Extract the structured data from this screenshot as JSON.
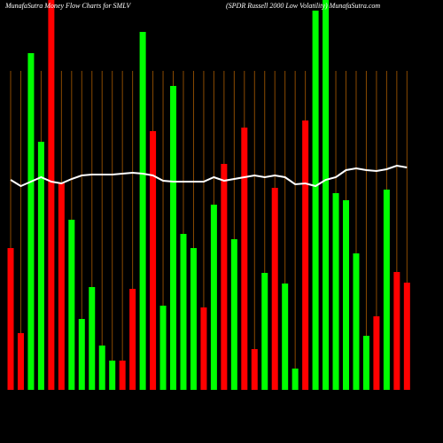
{
  "chart_data": {
    "type": "bar",
    "title": "MunafaSutra  Money Flow  Charts for SMLV",
    "subtitle": "(SPDR Russell 2000  Low  Volatility) MunafaSutra.com",
    "categories": [
      null,
      null,
      null,
      null,
      null,
      null,
      null,
      null,
      null,
      null,
      null,
      null,
      null,
      null,
      null,
      null,
      null,
      null,
      null,
      null,
      null,
      null,
      null,
      null,
      null,
      null,
      null,
      null,
      null,
      null,
      null,
      null,
      null,
      null,
      null,
      null,
      null,
      null,
      null,
      null
    ],
    "series": [
      {
        "values": [
          160,
          64,
          380,
          280,
          440,
          234,
          192,
          80,
          116,
          50,
          33,
          33,
          114,
          404,
          292,
          95,
          343,
          176,
          160,
          93,
          209,
          255,
          170,
          296,
          46,
          132,
          228,
          120,
          24,
          304,
          428,
          440,
          222,
          214,
          154,
          61,
          83,
          226,
          133,
          121
        ],
        "colors": [
          "#ff0000",
          "#ff0000",
          "#00ff00",
          "#00ff00",
          "#ff0000",
          "#ff0000",
          "#00ff00",
          "#00ff00",
          "#00ff00",
          "#00ff00",
          "#00ff00",
          "#ff0000",
          "#ff0000",
          "#00ff00",
          "#ff0000",
          "#00ff00",
          "#00ff00",
          "#00ff00",
          "#00ff00",
          "#ff0000",
          "#00ff00",
          "#ff0000",
          "#00ff00",
          "#ff0000",
          "#ff0000",
          "#00ff00",
          "#ff0000",
          "#00ff00",
          "#00ff00",
          "#ff0000",
          "#00ff00",
          "#00ff00",
          "#00ff00",
          "#00ff00",
          "#00ff00",
          "#00ff00",
          "#ff0000",
          "#00ff00",
          "#ff0000",
          "#ff0000"
        ]
      },
      {
        "type": "line",
        "color": "#ffffff",
        "values": [
          237,
          230,
          235,
          240,
          235,
          233,
          238,
          242,
          243,
          243,
          243,
          244,
          245,
          244,
          242,
          236,
          235,
          235,
          235,
          235,
          240,
          236,
          238,
          240,
          242,
          240,
          242,
          240,
          232,
          233,
          230,
          237,
          240,
          248,
          250,
          248,
          247,
          249,
          253,
          251
        ]
      }
    ],
    "ylim": [
      0,
      440
    ],
    "grid": true,
    "grid_color": "#8a4a00",
    "background": "#000000"
  }
}
